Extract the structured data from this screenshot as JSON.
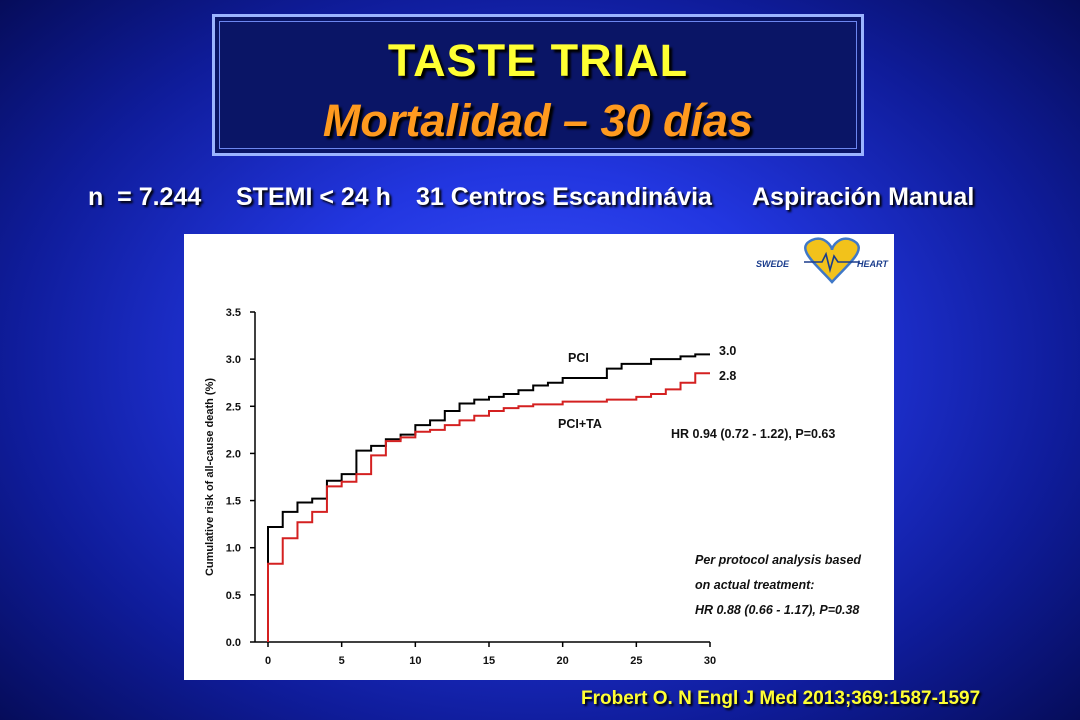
{
  "slide": {
    "title": "TASTE TRIAL",
    "subtitle_title": "Mortalidad – 30 días",
    "info": [
      "n  = 7.244",
      "STEMI < 24 h",
      "31 Centros Escandinávia",
      "Aspiración Manual"
    ],
    "citation": "Frobert O. N Engl J Med 2013;369:1587-1597",
    "colors": {
      "title": "#ffff33",
      "subtitle": "#ff9a1f",
      "background": "#2236e0",
      "citation": "#ffff33"
    }
  },
  "logo": {
    "left_text": "SWEDE",
    "right_text": "HEART",
    "icon": "heart-icon"
  },
  "chart_data": {
    "type": "line",
    "xlabel": "",
    "ylabel": "Cumulative risk of all-cause death (%)",
    "xlim": [
      0,
      30
    ],
    "ylim": [
      0,
      3.5
    ],
    "xticks": [
      "0",
      "5",
      "10",
      "15",
      "20",
      "25",
      "30"
    ],
    "yticks": [
      "0.0",
      "0.5",
      "1.0",
      "1.5",
      "2.0",
      "2.5",
      "3.0",
      "3.5"
    ],
    "step": true,
    "series": [
      {
        "name": "PCI",
        "color": "#000000",
        "end_label": "3.0",
        "x": [
          0,
          0,
          1,
          2,
          3,
          4,
          5,
          6,
          7,
          8,
          9,
          10,
          11,
          12,
          13,
          14,
          15,
          16,
          17,
          18,
          19,
          20,
          21,
          22,
          23,
          24,
          25,
          26,
          27,
          28,
          29
        ],
        "y": [
          0,
          1.22,
          1.38,
          1.48,
          1.52,
          1.71,
          1.78,
          2.03,
          2.08,
          2.15,
          2.2,
          2.3,
          2.35,
          2.45,
          2.53,
          2.57,
          2.6,
          2.63,
          2.67,
          2.72,
          2.75,
          2.8,
          2.8,
          2.8,
          2.9,
          2.95,
          2.95,
          3.0,
          3.0,
          3.03,
          3.05
        ]
      },
      {
        "name": "PCI+TA",
        "color": "#d42020",
        "end_label": "2.8",
        "x": [
          0,
          0,
          1,
          2,
          3,
          4,
          5,
          6,
          7,
          8,
          9,
          10,
          11,
          12,
          13,
          14,
          15,
          16,
          17,
          18,
          19,
          20,
          21,
          22,
          23,
          24,
          25,
          26,
          27,
          28,
          29
        ],
        "y": [
          0,
          0.83,
          1.1,
          1.27,
          1.38,
          1.65,
          1.7,
          1.78,
          1.98,
          2.13,
          2.17,
          2.23,
          2.25,
          2.3,
          2.35,
          2.4,
          2.45,
          2.48,
          2.5,
          2.52,
          2.52,
          2.55,
          2.55,
          2.55,
          2.57,
          2.57,
          2.6,
          2.63,
          2.68,
          2.75,
          2.85
        ]
      }
    ],
    "annotations": [
      "HR 0.94 (0.72 - 1.22), P=0.63",
      "Per protocol analysis based",
      "on actual treatment:",
      "HR 0.88 (0.66 - 1.17), P=0.38"
    ]
  }
}
